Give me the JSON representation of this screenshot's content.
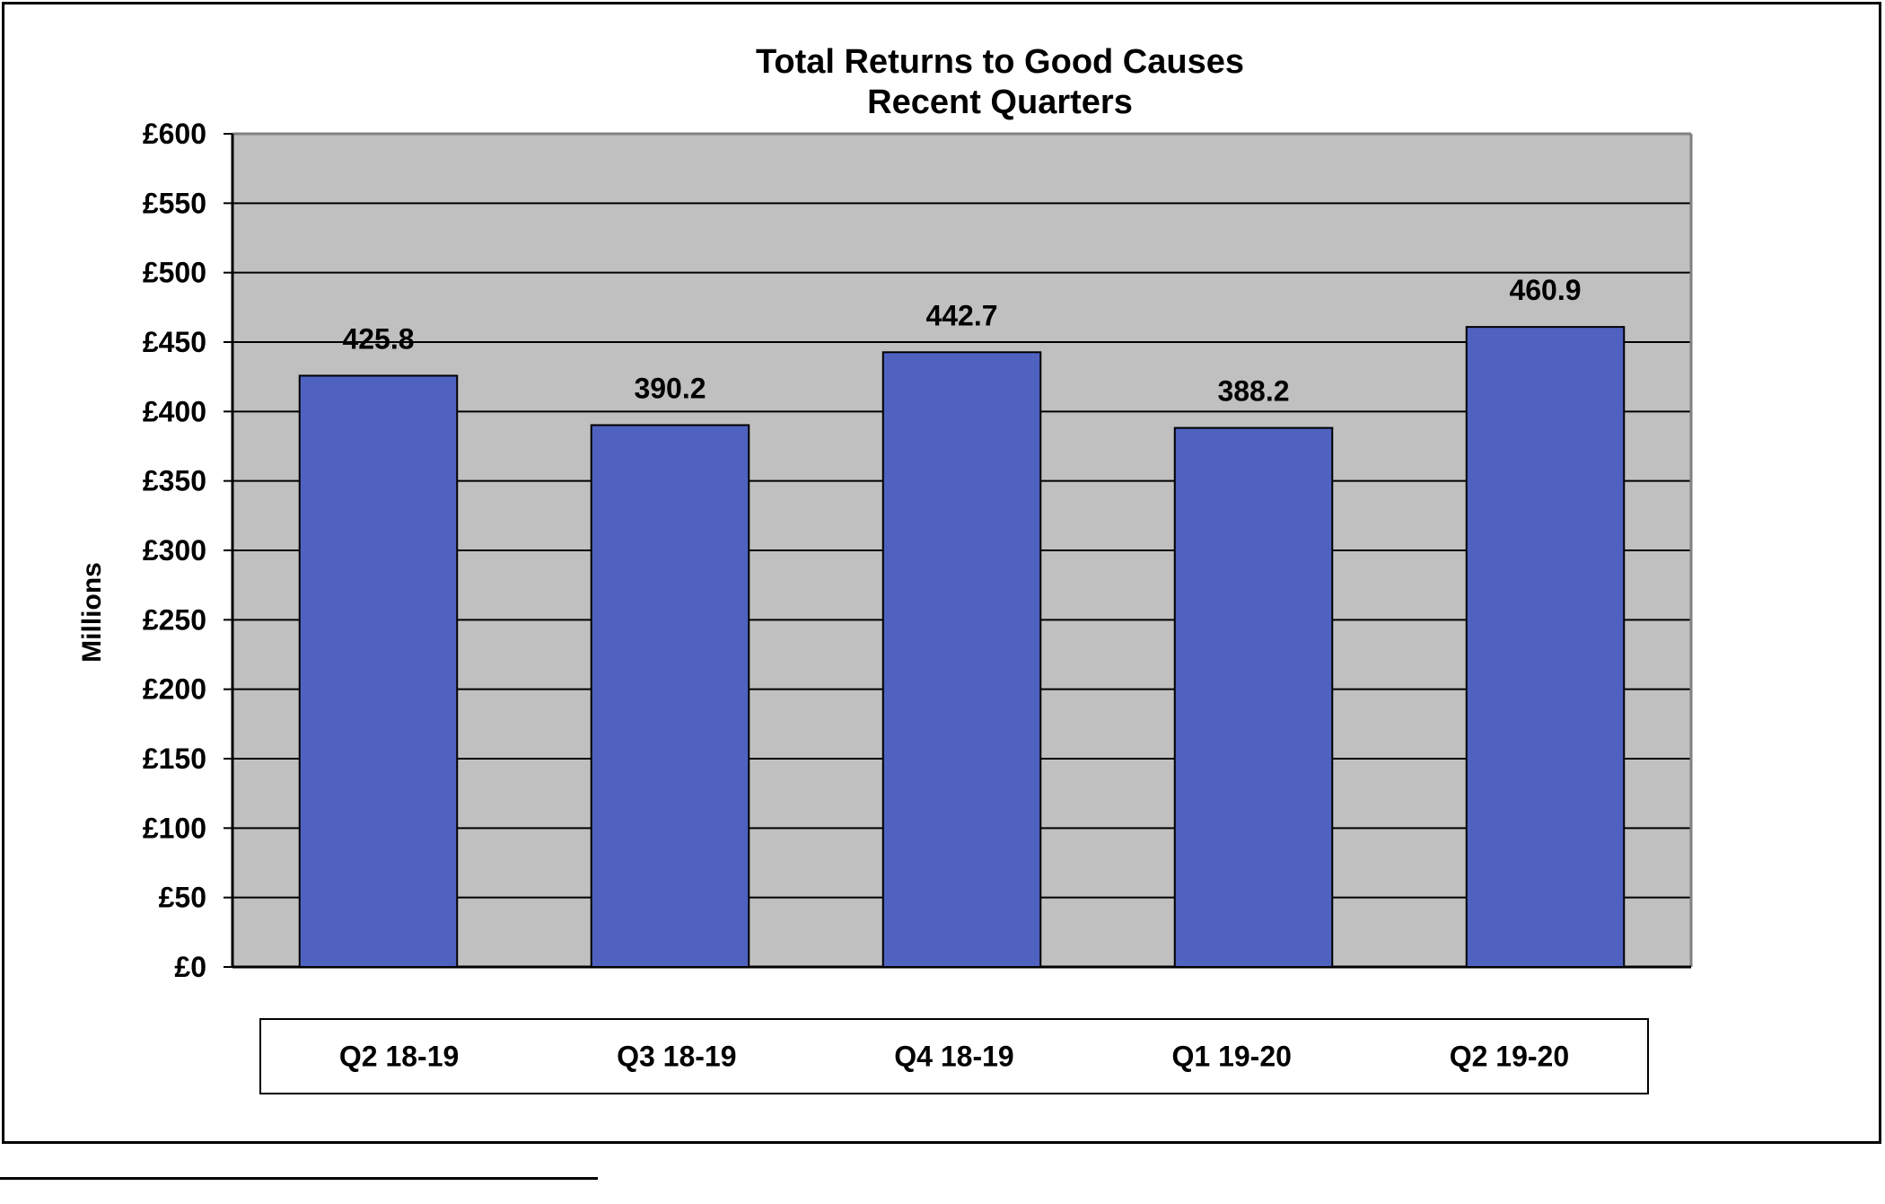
{
  "chart_data": {
    "type": "bar",
    "title": "Total Returns to Good Causes",
    "subtitle": "Recent Quarters",
    "ylabel": "Millions",
    "xlabel": "",
    "categories": [
      "Q2 18-19",
      "Q3 18-19",
      "Q4 18-19",
      "Q1 19-20",
      "Q2 19-20"
    ],
    "values": [
      425.8,
      390.2,
      442.7,
      388.2,
      460.9
    ],
    "data_labels": [
      "425.8",
      "390.2",
      "442.7",
      "388.2",
      "460.9"
    ],
    "ylim": [
      0,
      600
    ],
    "y_tick_step": 50,
    "y_tick_labels": [
      "£0",
      "£50",
      "£100",
      "£150",
      "£200",
      "£250",
      "£300",
      "£350",
      "£400",
      "£450",
      "£500",
      "£550",
      "£600"
    ],
    "grid": true,
    "legend": "none",
    "colors": {
      "bar": "#4f62c0",
      "plot_background": "#c0c0c0",
      "gridline": "#000000",
      "bar_outline": "#000000"
    }
  }
}
